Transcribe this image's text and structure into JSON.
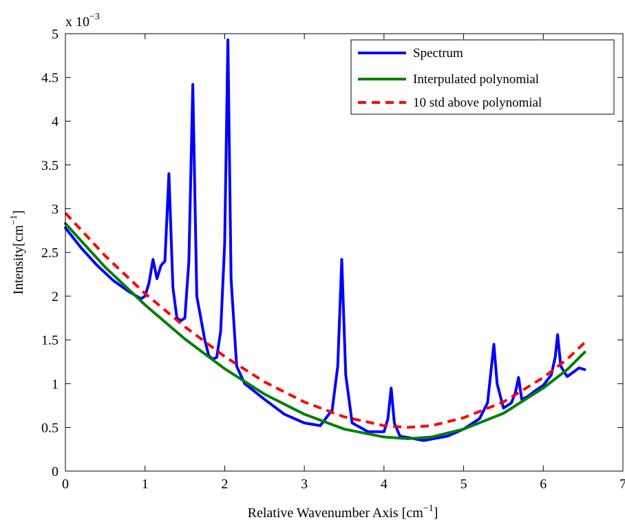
{
  "chart_data": {
    "type": "line",
    "xlabel": "Relative Wavenumber Axis [cm",
    "xlabel_sup": "−1",
    "xlabel_suffix": "]",
    "ylabel": "Intensity[cm",
    "ylabel_sup": "−1",
    "ylabel_suffix": "]",
    "exponent_label": "x 10",
    "exponent_sup": "−3",
    "xlim": [
      0,
      7
    ],
    "ylim": [
      0,
      5
    ],
    "xticks": [
      "0",
      "1",
      "2",
      "3",
      "4",
      "5",
      "6",
      "7"
    ],
    "yticks": [
      "0",
      "0.5",
      "1",
      "1.5",
      "2",
      "2.5",
      "3",
      "3.5",
      "4",
      "4.5",
      "5"
    ],
    "grid": false,
    "legend_position": "top-right",
    "series": [
      {
        "name": "Spectrum",
        "color": "#0000ff",
        "style": "solid",
        "x": [
          0,
          0.2,
          0.4,
          0.6,
          0.8,
          0.95,
          1.0,
          1.05,
          1.1,
          1.15,
          1.2,
          1.25,
          1.3,
          1.35,
          1.4,
          1.45,
          1.5,
          1.55,
          1.6,
          1.65,
          1.7,
          1.75,
          1.8,
          1.85,
          1.9,
          1.95,
          2.0,
          2.04,
          2.08,
          2.15,
          2.25,
          2.5,
          2.75,
          3.0,
          3.2,
          3.35,
          3.42,
          3.47,
          3.52,
          3.6,
          3.8,
          4.0,
          4.05,
          4.09,
          4.13,
          4.2,
          4.5,
          4.8,
          5.0,
          5.2,
          5.3,
          5.35,
          5.38,
          5.42,
          5.5,
          5.6,
          5.65,
          5.69,
          5.73,
          5.8,
          5.9,
          6.0,
          6.1,
          6.15,
          6.18,
          6.22,
          6.3,
          6.45,
          6.52
        ],
        "values": [
          2.78,
          2.55,
          2.35,
          2.18,
          2.05,
          1.97,
          2.0,
          2.15,
          2.42,
          2.2,
          2.35,
          2.4,
          3.4,
          2.1,
          1.75,
          1.72,
          1.75,
          2.4,
          4.42,
          2.0,
          1.75,
          1.5,
          1.32,
          1.28,
          1.3,
          1.6,
          2.6,
          4.93,
          2.2,
          1.2,
          1.0,
          0.82,
          0.65,
          0.55,
          0.52,
          0.7,
          1.2,
          2.42,
          1.1,
          0.55,
          0.45,
          0.45,
          0.6,
          0.95,
          0.55,
          0.4,
          0.35,
          0.4,
          0.48,
          0.6,
          0.78,
          1.2,
          1.45,
          1.0,
          0.72,
          0.78,
          0.9,
          1.07,
          0.82,
          0.85,
          0.92,
          0.98,
          1.1,
          1.3,
          1.56,
          1.2,
          1.08,
          1.18,
          1.16
        ]
      },
      {
        "name": "Interpulated polynomial",
        "color": "#007f00",
        "style": "solid",
        "x": [
          0,
          0.5,
          1.0,
          1.5,
          2.0,
          2.5,
          3.0,
          3.5,
          4.0,
          4.3,
          4.6,
          5.0,
          5.5,
          6.0,
          6.3,
          6.52
        ],
        "values": [
          2.83,
          2.33,
          1.9,
          1.51,
          1.17,
          0.88,
          0.65,
          0.48,
          0.39,
          0.37,
          0.39,
          0.48,
          0.66,
          0.95,
          1.16,
          1.36
        ]
      },
      {
        "name": "10 std above polynomial",
        "color": "#ff0000",
        "style": "dashed",
        "x": [
          0,
          0.5,
          1.0,
          1.5,
          2.0,
          2.5,
          3.0,
          3.5,
          4.0,
          4.3,
          4.6,
          5.0,
          5.5,
          6.0,
          6.3,
          6.52
        ],
        "values": [
          2.95,
          2.46,
          2.03,
          1.65,
          1.31,
          1.02,
          0.79,
          0.62,
          0.52,
          0.5,
          0.52,
          0.61,
          0.79,
          1.07,
          1.28,
          1.47
        ]
      }
    ]
  }
}
